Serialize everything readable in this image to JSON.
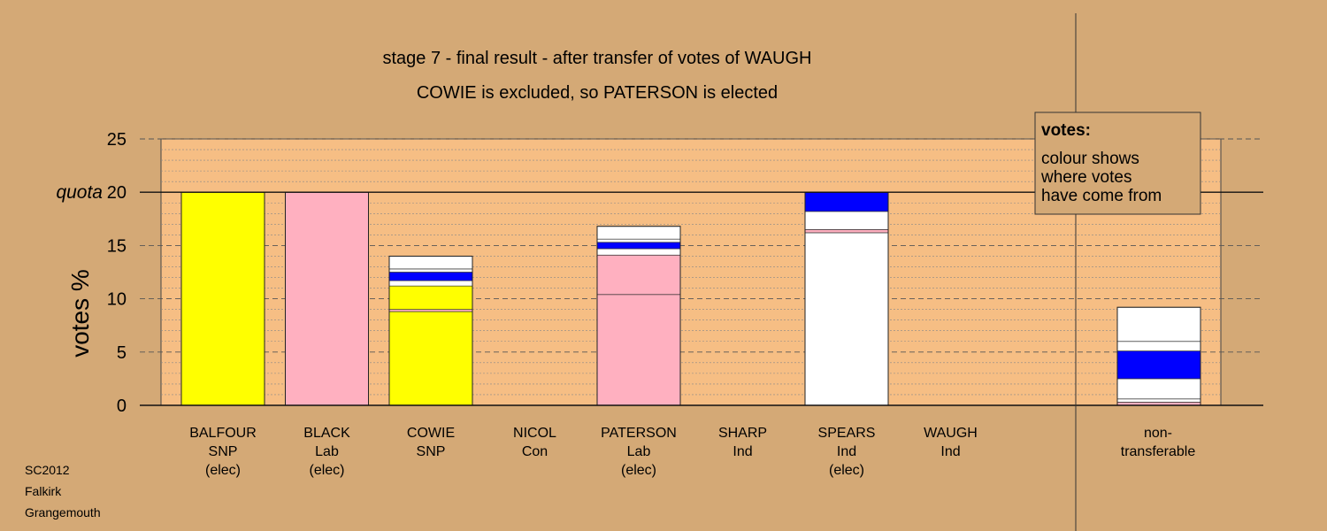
{
  "chart_data": {
    "type": "bar",
    "stacked": true,
    "title": "stage 7 - final result - after transfer of votes of WAUGH",
    "subtitle": "COWIE is excluded, so PATERSON is elected",
    "ylabel": "votes %",
    "ylim": [
      0,
      25
    ],
    "yticks": [
      0,
      5,
      10,
      15,
      20,
      25
    ],
    "quota": {
      "label": "quota",
      "value": 20
    },
    "grid": true,
    "categories": [
      {
        "lines": [
          "BALFOUR",
          "SNP",
          "(elec)"
        ]
      },
      {
        "lines": [
          "BLACK",
          "Lab",
          "(elec)"
        ]
      },
      {
        "lines": [
          "COWIE",
          "SNP"
        ]
      },
      {
        "lines": [
          "NICOL",
          "Con"
        ]
      },
      {
        "lines": [
          "PATERSON",
          "Lab",
          "(elec)"
        ]
      },
      {
        "lines": [
          "SHARP",
          "Ind"
        ]
      },
      {
        "lines": [
          "SPEARS",
          "Ind",
          "(elec)"
        ]
      },
      {
        "lines": [
          "WAUGH",
          "Ind"
        ]
      },
      {
        "lines": [
          "non-",
          "transferable"
        ]
      }
    ],
    "bars": [
      [
        {
          "value": 20.0,
          "color": "#ffff00"
        }
      ],
      [
        {
          "value": 20.0,
          "color": "#ffb0c0"
        }
      ],
      [
        {
          "value": 8.8,
          "color": "#ffff00"
        },
        {
          "value": 0.2,
          "color": "#ffb0c0"
        },
        {
          "value": 2.2,
          "color": "#ffff00"
        },
        {
          "value": 0.5,
          "color": "#ffffff"
        },
        {
          "value": 0.8,
          "color": "#0000ff"
        },
        {
          "value": 0.3,
          "color": "#ffffff"
        },
        {
          "value": 1.2,
          "color": "#ffffff"
        }
      ],
      [],
      [
        {
          "value": 10.4,
          "color": "#ffb0c0"
        },
        {
          "value": 3.7,
          "color": "#ffb0c0"
        },
        {
          "value": 0.6,
          "color": "#ffffff"
        },
        {
          "value": 0.6,
          "color": "#0000ff"
        },
        {
          "value": 0.3,
          "color": "#ffffff"
        },
        {
          "value": 1.2,
          "color": "#ffffff"
        }
      ],
      [],
      [
        {
          "value": 16.2,
          "color": "#ffffff"
        },
        {
          "value": 0.3,
          "color": "#ffb0c0"
        },
        {
          "value": 1.7,
          "color": "#ffffff"
        },
        {
          "value": 1.8,
          "color": "#0000ff"
        }
      ],
      [],
      [
        {
          "value": 0.3,
          "color": "#ffb0c0"
        },
        {
          "value": 0.3,
          "color": "#ffffff"
        },
        {
          "value": 1.9,
          "color": "#ffffff"
        },
        {
          "value": 2.6,
          "color": "#0000ff"
        },
        {
          "value": 0.9,
          "color": "#ffffff"
        },
        {
          "value": 3.2,
          "color": "#ffffff"
        }
      ]
    ],
    "colors": {
      "background": "#d4a976",
      "plot_area": "#f6be84",
      "SNP": "#ffff00",
      "Lab": "#ffb0c0",
      "Ind": "#ffffff",
      "other": "#0000ff"
    }
  },
  "legend": {
    "title": "votes:",
    "lines": [
      "colour shows",
      "where votes",
      "have come from"
    ]
  },
  "footer": [
    "SC2012",
    "Falkirk",
    "Grangemouth"
  ]
}
